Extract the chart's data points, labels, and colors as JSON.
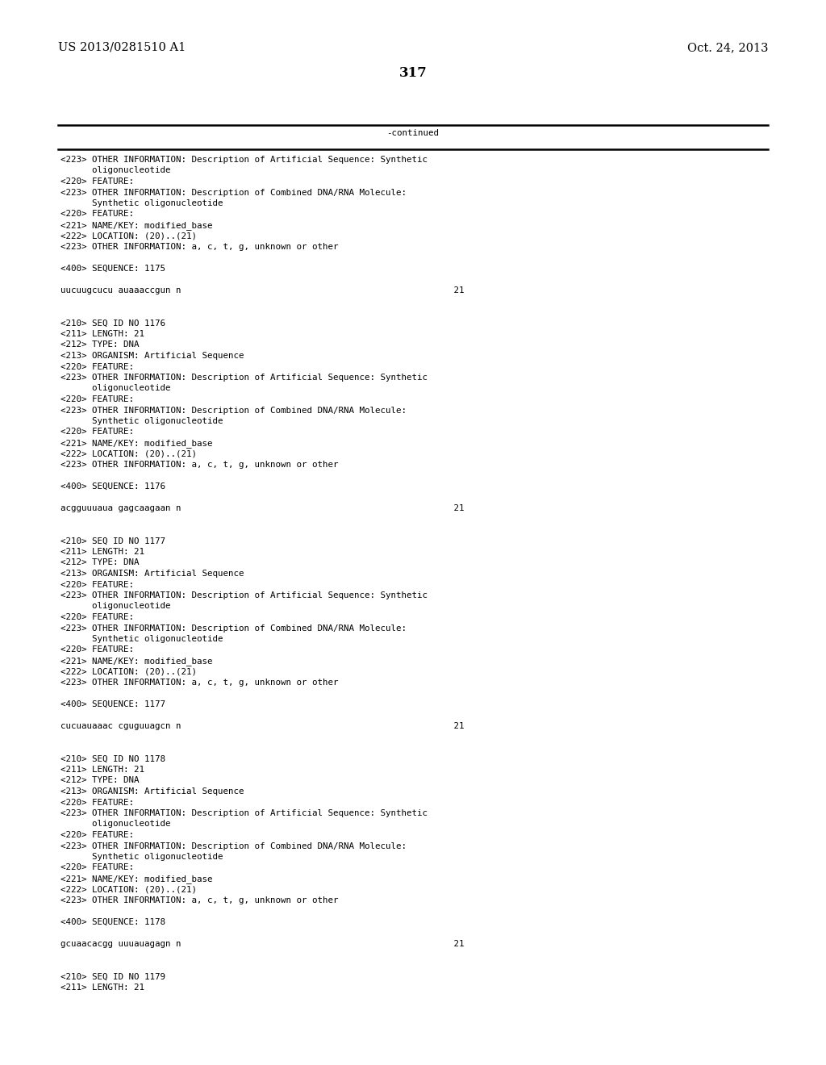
{
  "header_left": "US 2013/0281510 A1",
  "header_right": "Oct. 24, 2013",
  "page_number": "317",
  "continued_label": "-continued",
  "background_color": "#ffffff",
  "text_color": "#000000",
  "font_size_header": 10.5,
  "font_size_body": 7.8,
  "font_size_page": 12,
  "lines": [
    "<223> OTHER INFORMATION: Description of Artificial Sequence: Synthetic",
    "      oligonucleotide",
    "<220> FEATURE:",
    "<223> OTHER INFORMATION: Description of Combined DNA/RNA Molecule:",
    "      Synthetic oligonucleotide",
    "<220> FEATURE:",
    "<221> NAME/KEY: modified_base",
    "<222> LOCATION: (20)..(21)",
    "<223> OTHER INFORMATION: a, c, t, g, unknown or other",
    "",
    "<400> SEQUENCE: 1175",
    "",
    "uucuugcucu auaaaccgun n                                                    21",
    "",
    "",
    "<210> SEQ ID NO 1176",
    "<211> LENGTH: 21",
    "<212> TYPE: DNA",
    "<213> ORGANISM: Artificial Sequence",
    "<220> FEATURE:",
    "<223> OTHER INFORMATION: Description of Artificial Sequence: Synthetic",
    "      oligonucleotide",
    "<220> FEATURE:",
    "<223> OTHER INFORMATION: Description of Combined DNA/RNA Molecule:",
    "      Synthetic oligonucleotide",
    "<220> FEATURE:",
    "<221> NAME/KEY: modified_base",
    "<222> LOCATION: (20)..(21)",
    "<223> OTHER INFORMATION: a, c, t, g, unknown or other",
    "",
    "<400> SEQUENCE: 1176",
    "",
    "acgguuuaua gagcaagaan n                                                    21",
    "",
    "",
    "<210> SEQ ID NO 1177",
    "<211> LENGTH: 21",
    "<212> TYPE: DNA",
    "<213> ORGANISM: Artificial Sequence",
    "<220> FEATURE:",
    "<223> OTHER INFORMATION: Description of Artificial Sequence: Synthetic",
    "      oligonucleotide",
    "<220> FEATURE:",
    "<223> OTHER INFORMATION: Description of Combined DNA/RNA Molecule:",
    "      Synthetic oligonucleotide",
    "<220> FEATURE:",
    "<221> NAME/KEY: modified_base",
    "<222> LOCATION: (20)..(21)",
    "<223> OTHER INFORMATION: a, c, t, g, unknown or other",
    "",
    "<400> SEQUENCE: 1177",
    "",
    "cucuauaaac cguguuagcn n                                                    21",
    "",
    "",
    "<210> SEQ ID NO 1178",
    "<211> LENGTH: 21",
    "<212> TYPE: DNA",
    "<213> ORGANISM: Artificial Sequence",
    "<220> FEATURE:",
    "<223> OTHER INFORMATION: Description of Artificial Sequence: Synthetic",
    "      oligonucleotide",
    "<220> FEATURE:",
    "<223> OTHER INFORMATION: Description of Combined DNA/RNA Molecule:",
    "      Synthetic oligonucleotide",
    "<220> FEATURE:",
    "<221> NAME/KEY: modified_base",
    "<222> LOCATION: (20)..(21)",
    "<223> OTHER INFORMATION: a, c, t, g, unknown or other",
    "",
    "<400> SEQUENCE: 1178",
    "",
    "gcuaacacgg uuuauagagn n                                                    21",
    "",
    "",
    "<210> SEQ ID NO 1179",
    "<211> LENGTH: 21"
  ]
}
